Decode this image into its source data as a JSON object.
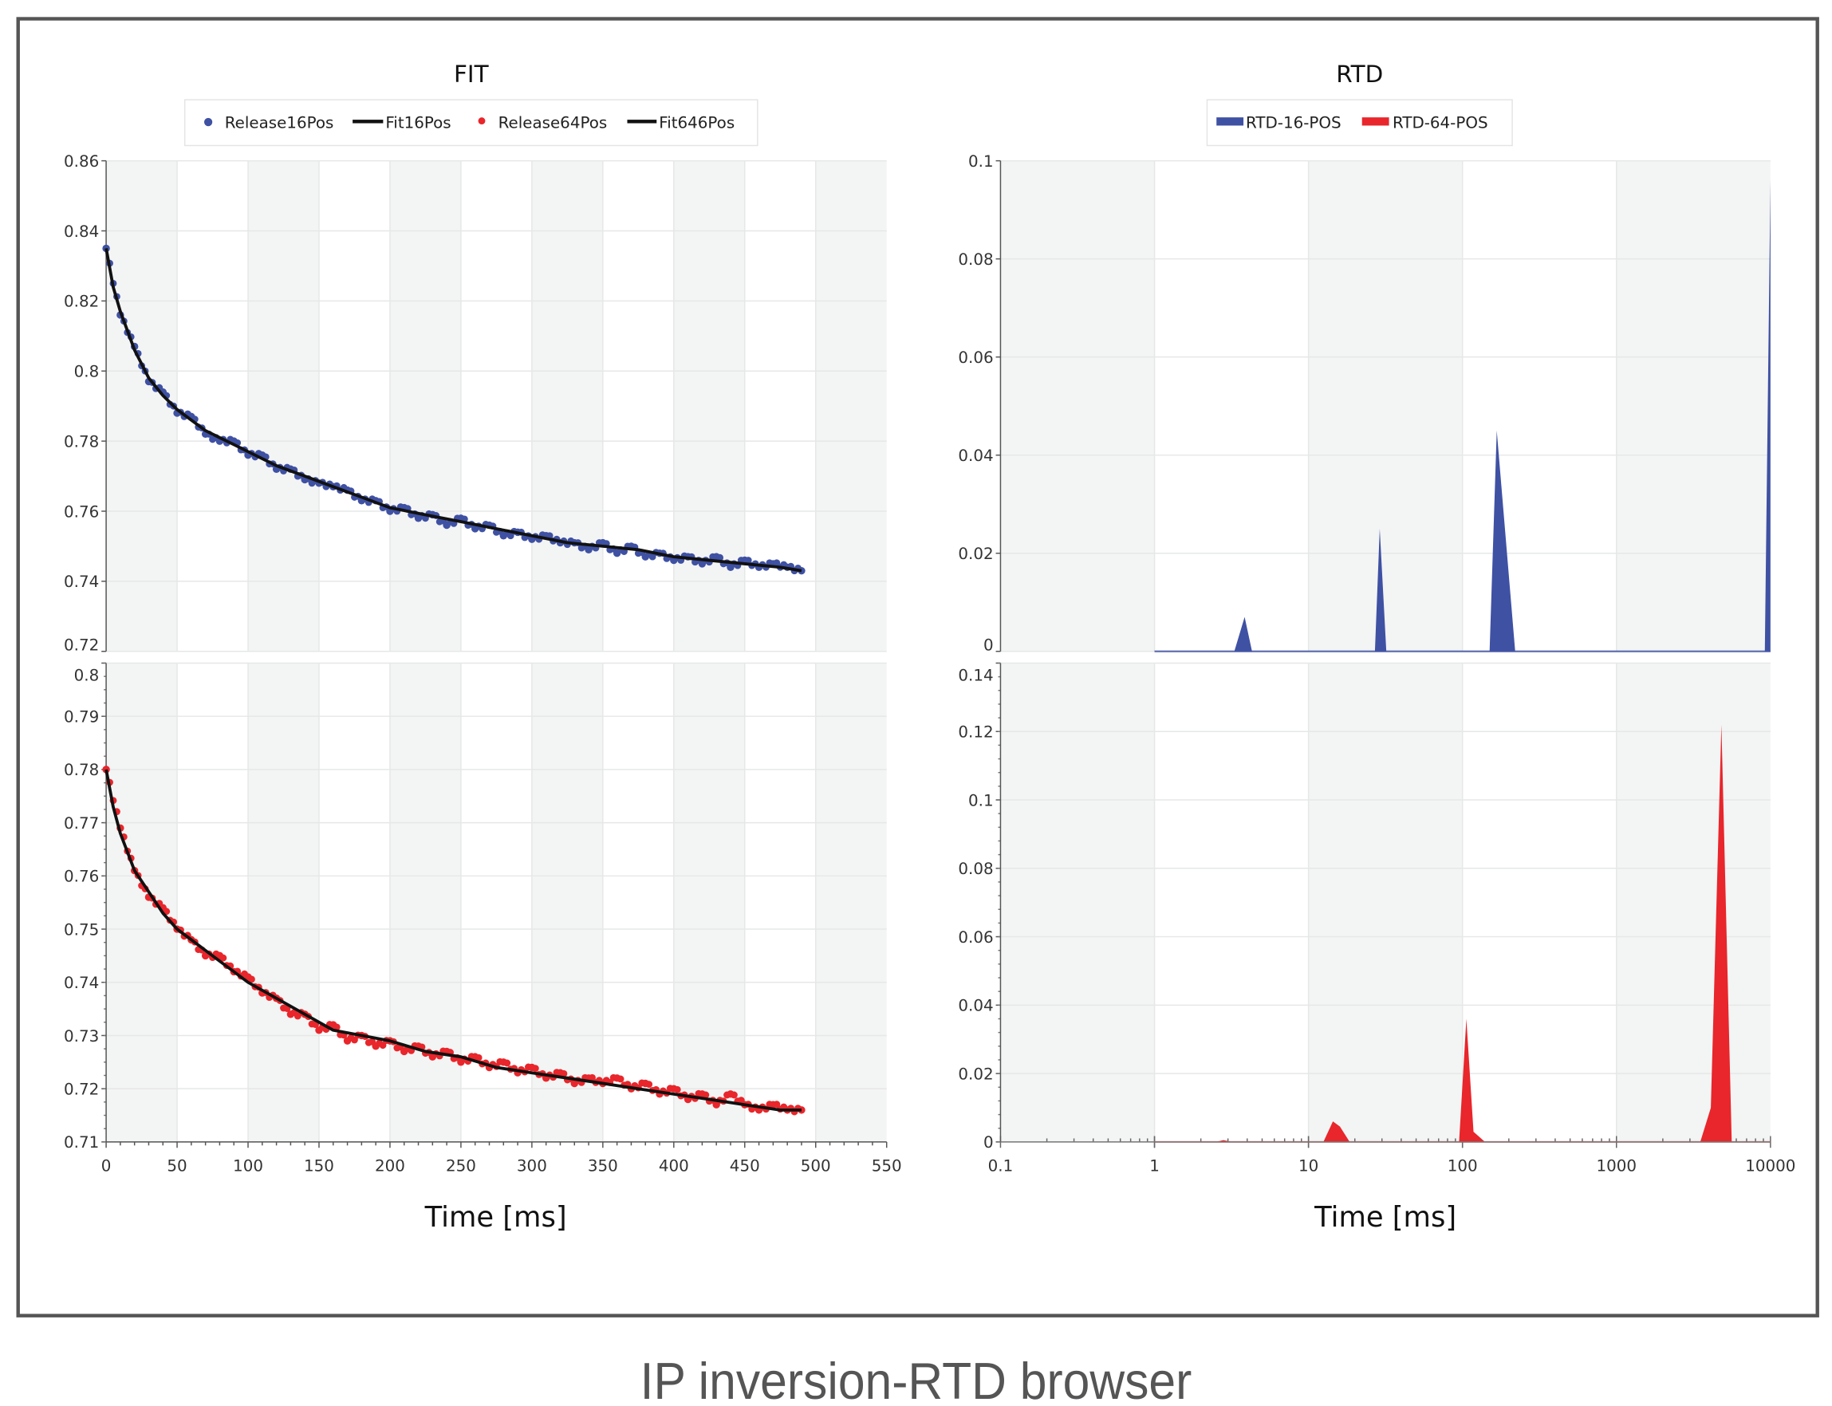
{
  "caption": "IP inversion-RTD browser",
  "colors": {
    "blue": "#3f51a3",
    "red": "#e8262b",
    "fit": "#111111",
    "band": "#f3f4f4",
    "frame": "#555555"
  },
  "chart_data": [
    {
      "type": "scatter",
      "title": "FIT",
      "legend": [
        "Release16Pos",
        "Fit16Pos",
        "Release64Pos",
        "Fit646Pos"
      ],
      "legend_placement": "top",
      "xlabel": "Time [ms]",
      "xlim": [
        0,
        550
      ],
      "x_ticks": [
        0,
        50,
        100,
        150,
        200,
        250,
        300,
        350,
        400,
        450,
        500,
        550
      ],
      "grid": true,
      "panels": [
        {
          "ylim": [
            0.72,
            0.86
          ],
          "y_ticks": [
            "0.72",
            "0.74",
            "0.76",
            "0.78",
            "0.8",
            "0.82",
            "0.84",
            "0.86"
          ],
          "series": [
            {
              "name": "Release16Pos",
              "kind": "scatter",
              "color": "#3f51a3",
              "points": [
                [
                  0,
                  0.835
                ],
                [
                  10,
                  0.816
                ],
                [
                  20,
                  0.807
                ],
                [
                  30,
                  0.797
                ],
                [
                  40,
                  0.794
                ],
                [
                  50,
                  0.788
                ],
                [
                  60,
                  0.787
                ],
                [
                  70,
                  0.782
                ],
                [
                  80,
                  0.78
                ],
                [
                  90,
                  0.78
                ],
                [
                  100,
                  0.776
                ],
                [
                  110,
                  0.776
                ],
                [
                  120,
                  0.772
                ],
                [
                  130,
                  0.772
                ],
                [
                  140,
                  0.769
                ],
                [
                  150,
                  0.768
                ],
                [
                  160,
                  0.767
                ],
                [
                  170,
                  0.766
                ],
                [
                  180,
                  0.763
                ],
                [
                  190,
                  0.763
                ],
                [
                  200,
                  0.76
                ],
                [
                  210,
                  0.761
                ],
                [
                  220,
                  0.758
                ],
                [
                  230,
                  0.759
                ],
                [
                  240,
                  0.756
                ],
                [
                  250,
                  0.758
                ],
                [
                  260,
                  0.755
                ],
                [
                  270,
                  0.756
                ],
                [
                  280,
                  0.753
                ],
                [
                  290,
                  0.754
                ],
                [
                  300,
                  0.752
                ],
                [
                  310,
                  0.753
                ],
                [
                  320,
                  0.751
                ],
                [
                  330,
                  0.751
                ],
                [
                  340,
                  0.749
                ],
                [
                  350,
                  0.751
                ],
                [
                  360,
                  0.748
                ],
                [
                  370,
                  0.75
                ],
                [
                  380,
                  0.747
                ],
                [
                  390,
                  0.748
                ],
                [
                  400,
                  0.746
                ],
                [
                  410,
                  0.747
                ],
                [
                  420,
                  0.745
                ],
                [
                  430,
                  0.747
                ],
                [
                  440,
                  0.744
                ],
                [
                  450,
                  0.746
                ],
                [
                  460,
                  0.744
                ],
                [
                  470,
                  0.745
                ],
                [
                  480,
                  0.744
                ],
                [
                  490,
                  0.743
                ]
              ]
            },
            {
              "name": "Fit16Pos",
              "kind": "line",
              "color": "#111111",
              "points": [
                [
                  0,
                  0.835
                ],
                [
                  5,
                  0.824
                ],
                [
                  10,
                  0.817
                ],
                [
                  20,
                  0.806
                ],
                [
                  30,
                  0.798
                ],
                [
                  40,
                  0.793
                ],
                [
                  50,
                  0.789
                ],
                [
                  60,
                  0.786
                ],
                [
                  70,
                  0.783
                ],
                [
                  80,
                  0.781
                ],
                [
                  90,
                  0.779
                ],
                [
                  100,
                  0.777
                ],
                [
                  120,
                  0.773
                ],
                [
                  140,
                  0.77
                ],
                [
                  160,
                  0.767
                ],
                [
                  180,
                  0.764
                ],
                [
                  200,
                  0.761
                ],
                [
                  225,
                  0.759
                ],
                [
                  250,
                  0.757
                ],
                [
                  275,
                  0.755
                ],
                [
                  300,
                  0.753
                ],
                [
                  325,
                  0.751
                ],
                [
                  350,
                  0.75
                ],
                [
                  375,
                  0.749
                ],
                [
                  400,
                  0.747
                ],
                [
                  425,
                  0.746
                ],
                [
                  450,
                  0.745
                ],
                [
                  475,
                  0.744
                ],
                [
                  490,
                  0.743
                ]
              ]
            }
          ]
        },
        {
          "ylim": [
            0.71,
            0.8
          ],
          "y_ticks": [
            "0.71",
            "0.72",
            "0.73",
            "0.74",
            "0.75",
            "0.76",
            "0.77",
            "0.78",
            "0.79",
            "0.8"
          ],
          "series": [
            {
              "name": "Release64Pos",
              "kind": "scatter",
              "color": "#e8262b",
              "points": [
                [
                  0,
                  0.78
                ],
                [
                  10,
                  0.769
                ],
                [
                  20,
                  0.761
                ],
                [
                  30,
                  0.756
                ],
                [
                  40,
                  0.754
                ],
                [
                  50,
                  0.75
                ],
                [
                  60,
                  0.748
                ],
                [
                  70,
                  0.745
                ],
                [
                  80,
                  0.745
                ],
                [
                  90,
                  0.742
                ],
                [
                  100,
                  0.741
                ],
                [
                  110,
                  0.738
                ],
                [
                  120,
                  0.737
                ],
                [
                  130,
                  0.734
                ],
                [
                  140,
                  0.734
                ],
                [
                  150,
                  0.731
                ],
                [
                  160,
                  0.732
                ],
                [
                  170,
                  0.729
                ],
                [
                  180,
                  0.73
                ],
                [
                  190,
                  0.728
                ],
                [
                  200,
                  0.729
                ],
                [
                  210,
                  0.727
                ],
                [
                  220,
                  0.728
                ],
                [
                  230,
                  0.726
                ],
                [
                  240,
                  0.727
                ],
                [
                  250,
                  0.725
                ],
                [
                  260,
                  0.726
                ],
                [
                  270,
                  0.724
                ],
                [
                  280,
                  0.725
                ],
                [
                  290,
                  0.723
                ],
                [
                  300,
                  0.724
                ],
                [
                  310,
                  0.722
                ],
                [
                  320,
                  0.723
                ],
                [
                  330,
                  0.721
                ],
                [
                  340,
                  0.722
                ],
                [
                  350,
                  0.721
                ],
                [
                  360,
                  0.722
                ],
                [
                  370,
                  0.72
                ],
                [
                  380,
                  0.721
                ],
                [
                  390,
                  0.719
                ],
                [
                  400,
                  0.72
                ],
                [
                  410,
                  0.718
                ],
                [
                  420,
                  0.719
                ],
                [
                  430,
                  0.717
                ],
                [
                  440,
                  0.719
                ],
                [
                  450,
                  0.717
                ],
                [
                  460,
                  0.716
                ],
                [
                  470,
                  0.717
                ],
                [
                  480,
                  0.716
                ],
                [
                  490,
                  0.716
                ]
              ]
            },
            {
              "name": "Fit646Pos",
              "kind": "line",
              "color": "#111111",
              "points": [
                [
                  0,
                  0.78
                ],
                [
                  5,
                  0.773
                ],
                [
                  10,
                  0.768
                ],
                [
                  20,
                  0.761
                ],
                [
                  30,
                  0.757
                ],
                [
                  40,
                  0.753
                ],
                [
                  50,
                  0.75
                ],
                [
                  60,
                  0.748
                ],
                [
                  70,
                  0.746
                ],
                [
                  80,
                  0.744
                ],
                [
                  90,
                  0.742
                ],
                [
                  100,
                  0.74
                ],
                [
                  120,
                  0.737
                ],
                [
                  140,
                  0.734
                ],
                [
                  160,
                  0.731
                ],
                [
                  180,
                  0.73
                ],
                [
                  200,
                  0.729
                ],
                [
                  225,
                  0.727
                ],
                [
                  250,
                  0.726
                ],
                [
                  275,
                  0.724
                ],
                [
                  300,
                  0.723
                ],
                [
                  325,
                  0.722
                ],
                [
                  350,
                  0.721
                ],
                [
                  375,
                  0.72
                ],
                [
                  400,
                  0.719
                ],
                [
                  425,
                  0.718
                ],
                [
                  450,
                  0.717
                ],
                [
                  475,
                  0.716
                ],
                [
                  490,
                  0.716
                ]
              ]
            }
          ]
        }
      ]
    },
    {
      "type": "area",
      "title": "RTD",
      "legend": [
        "RTD-16-POS",
        "RTD-64-POS"
      ],
      "legend_placement": "top",
      "xlabel": "Time [ms]",
      "x_scale": "log",
      "xlim": [
        0.1,
        10000
      ],
      "x_ticks": [
        "0.1",
        "1",
        "10",
        "100",
        "1000",
        "10000"
      ],
      "grid": true,
      "panels": [
        {
          "ylim": [
            0,
            0.1
          ],
          "y_ticks": [
            "0",
            "0.02",
            "0.04",
            "0.06",
            "0.08",
            "0.1"
          ],
          "series": [
            {
              "name": "RTD-16-POS",
              "color": "#3f51a3",
              "points": [
                [
                  1,
                  0
                ],
                [
                  3.3,
                  0
                ],
                [
                  3.85,
                  0.007
                ],
                [
                  4.3,
                  0
                ],
                [
                  27,
                  0
                ],
                [
                  29,
                  0.025
                ],
                [
                  32,
                  0
                ],
                [
                  150,
                  0
                ],
                [
                  167,
                  0.045
                ],
                [
                  220,
                  0
                ],
                [
                  9200,
                  0
                ],
                [
                  10000,
                  0.096
                ],
                [
                  10000,
                  0
                ]
              ]
            }
          ]
        },
        {
          "ylim": [
            0,
            0.14
          ],
          "y_ticks": [
            "0",
            "0.02",
            "0.04",
            "0.06",
            "0.08",
            "0.1",
            "0.12",
            "0.14"
          ],
          "series": [
            {
              "name": "RTD-64-POS",
              "color": "#e8262b",
              "points": [
                [
                  1,
                  0
                ],
                [
                  2.5,
                  0
                ],
                [
                  2.8,
                  0.0005
                ],
                [
                  3.2,
                  0
                ],
                [
                  12.5,
                  0
                ],
                [
                  14.4,
                  0.006
                ],
                [
                  16,
                  0.0045
                ],
                [
                  18.5,
                  0
                ],
                [
                  95,
                  0
                ],
                [
                  106,
                  0.036
                ],
                [
                  118,
                  0.003
                ],
                [
                  140,
                  0
                ],
                [
                  3500,
                  0
                ],
                [
                  4100,
                  0.01
                ],
                [
                  4800,
                  0.122
                ],
                [
                  5600,
                  0
                ],
                [
                  10000,
                  0
                ]
              ]
            }
          ]
        }
      ]
    }
  ]
}
